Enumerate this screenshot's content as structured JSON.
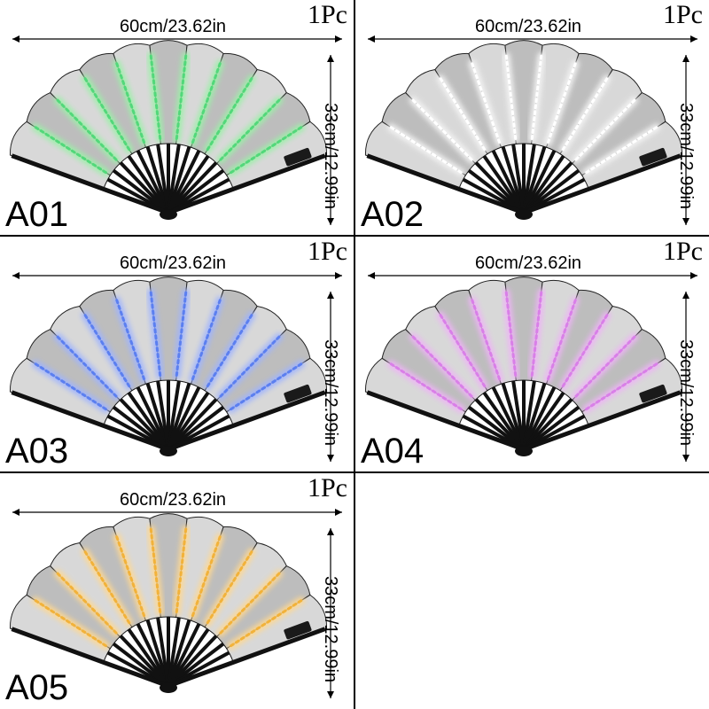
{
  "products": [
    {
      "code": "A01",
      "quantity": "1Pc",
      "width": "60cm/23.62in",
      "height": "33cm/12.99in",
      "light_color": "#52d87a",
      "glow_color": "#9cf0a8"
    },
    {
      "code": "A02",
      "quantity": "1Pc",
      "width": "60cm/23.62in",
      "height": "33cm/12.99in",
      "light_color": "#ffffff",
      "glow_color": "#f4f4f4"
    },
    {
      "code": "A03",
      "quantity": "1Pc",
      "width": "60cm/23.62in",
      "height": "33cm/12.99in",
      "light_color": "#5b7ff0",
      "glow_color": "#9fb4ff"
    },
    {
      "code": "A04",
      "quantity": "1Pc",
      "width": "60cm/23.62in",
      "height": "33cm/12.99in",
      "light_color": "#d97fe8",
      "glow_color": "#eeb4f6"
    },
    {
      "code": "A05",
      "quantity": "1Pc",
      "width": "60cm/23.62in",
      "height": "33cm/12.99in",
      "light_color": "#f2b23a",
      "glow_color": "#ffd890"
    }
  ],
  "colors": {
    "grid_line": "#000000",
    "fan_fabric": "#bdbdbd",
    "fan_fabric_light": "#d8d8d8",
    "fan_frame": "#111111"
  }
}
